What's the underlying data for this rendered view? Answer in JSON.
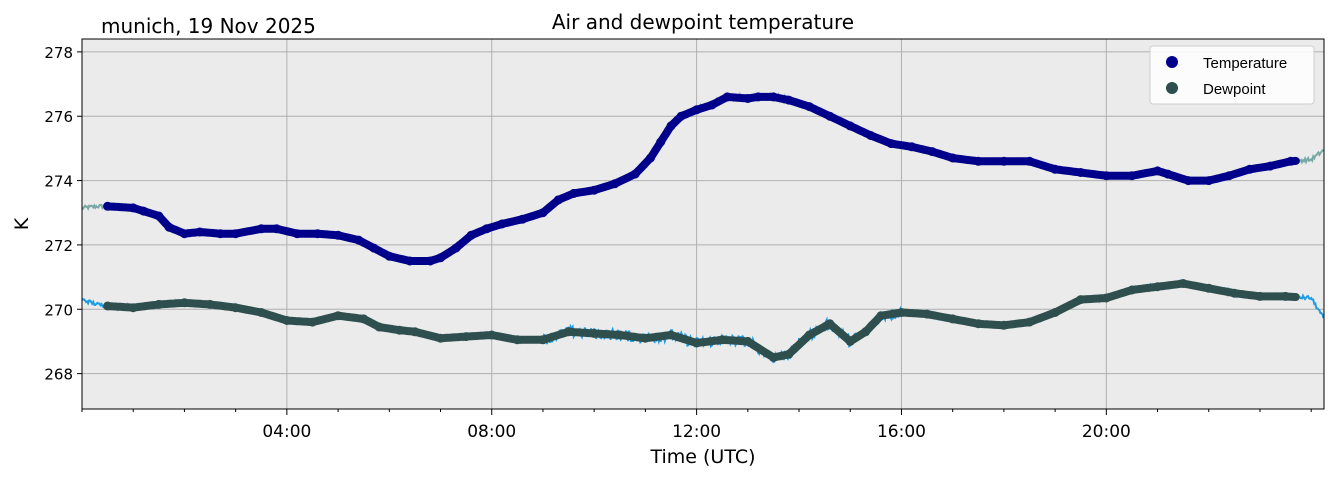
{
  "chart_data": {
    "type": "line",
    "title": "Air and dewpoint temperature",
    "subtitle": "munich, 19 Nov 2025",
    "xlabel": "Time (UTC)",
    "ylabel": "K",
    "xlim_hours": [
      0,
      24.25
    ],
    "ylim": [
      266.9,
      278.4
    ],
    "x_ticks": [
      {
        "hour": 4,
        "label": "04:00"
      },
      {
        "hour": 8,
        "label": "08:00"
      },
      {
        "hour": 12,
        "label": "12:00"
      },
      {
        "hour": 16,
        "label": "16:00"
      },
      {
        "hour": 20,
        "label": "20:00"
      }
    ],
    "y_ticks": [
      {
        "value": 268,
        "label": "268"
      },
      {
        "value": 270,
        "label": "270"
      },
      {
        "value": 272,
        "label": "272"
      },
      {
        "value": 274,
        "label": "274"
      },
      {
        "value": 276,
        "label": "276"
      },
      {
        "value": 278,
        "label": "278"
      }
    ],
    "grid": true,
    "legend_position": "top-right",
    "series": [
      {
        "name": "Temperature",
        "marker_color": "#00008b",
        "raw_color": "#79a9a5",
        "x": [
          0,
          0.3,
          0.5,
          1.0,
          1.2,
          1.5,
          1.7,
          2.0,
          2.3,
          2.7,
          3.0,
          3.5,
          3.8,
          4.2,
          4.6,
          5.0,
          5.4,
          5.7,
          6.0,
          6.4,
          6.8,
          7.0,
          7.3,
          7.6,
          7.9,
          8.2,
          8.6,
          9.0,
          9.3,
          9.6,
          10.0,
          10.4,
          10.8,
          11.1,
          11.3,
          11.5,
          11.7,
          12.0,
          12.3,
          12.6,
          13.0,
          13.2,
          13.5,
          13.8,
          14.2,
          14.6,
          15.0,
          15.4,
          15.8,
          16.2,
          16.6,
          17.0,
          17.5,
          18.0,
          18.5,
          19.0,
          19.5,
          20.0,
          20.5,
          21.0,
          21.2,
          21.6,
          22.0,
          22.4,
          22.8,
          23.2,
          23.6,
          24.0,
          24.25
        ],
        "values": [
          273.15,
          273.2,
          273.2,
          273.15,
          273.05,
          272.9,
          272.55,
          272.35,
          272.4,
          272.35,
          272.35,
          272.5,
          272.5,
          272.35,
          272.35,
          272.3,
          272.15,
          271.9,
          271.65,
          271.5,
          271.5,
          271.6,
          271.9,
          272.3,
          272.5,
          272.65,
          272.8,
          273.0,
          273.4,
          273.6,
          273.7,
          273.9,
          274.2,
          274.7,
          275.2,
          275.7,
          276.0,
          276.2,
          276.35,
          276.6,
          276.55,
          276.6,
          276.6,
          276.5,
          276.3,
          276.0,
          275.7,
          275.4,
          275.15,
          275.05,
          274.9,
          274.7,
          274.6,
          274.6,
          274.6,
          274.35,
          274.25,
          274.15,
          274.15,
          274.3,
          274.2,
          274.0,
          274.0,
          274.15,
          274.35,
          274.45,
          274.6,
          274.65,
          274.95
        ]
      },
      {
        "name": "Dewpoint",
        "marker_color": "#2f4f4f",
        "raw_color": "#1e9de5",
        "x": [
          0,
          0.3,
          0.5,
          1.0,
          1.5,
          2.0,
          2.5,
          3.0,
          3.5,
          4.0,
          4.5,
          5.0,
          5.5,
          5.8,
          6.2,
          6.5,
          7.0,
          7.5,
          8.0,
          8.5,
          9.0,
          9.5,
          10.0,
          10.5,
          11.0,
          11.5,
          12.0,
          12.5,
          13.0,
          13.5,
          13.8,
          14.2,
          14.6,
          15.0,
          15.3,
          15.6,
          16.0,
          16.5,
          17.0,
          17.5,
          18.0,
          18.5,
          19.0,
          19.5,
          20.0,
          20.5,
          21.0,
          21.5,
          22.0,
          22.5,
          23.0,
          23.5,
          24.0,
          24.25
        ],
        "values": [
          270.3,
          270.15,
          270.1,
          270.05,
          270.15,
          270.2,
          270.15,
          270.05,
          269.9,
          269.65,
          269.6,
          269.8,
          269.7,
          269.45,
          269.35,
          269.3,
          269.1,
          269.15,
          269.2,
          269.05,
          269.05,
          269.3,
          269.25,
          269.2,
          269.1,
          269.2,
          268.95,
          269.05,
          269.0,
          268.5,
          268.6,
          269.2,
          269.55,
          269.0,
          269.3,
          269.8,
          269.9,
          269.85,
          269.7,
          269.55,
          269.5,
          269.6,
          269.9,
          270.3,
          270.35,
          270.6,
          270.7,
          270.8,
          270.65,
          270.5,
          270.4,
          270.4,
          270.35,
          269.7
        ]
      }
    ]
  }
}
